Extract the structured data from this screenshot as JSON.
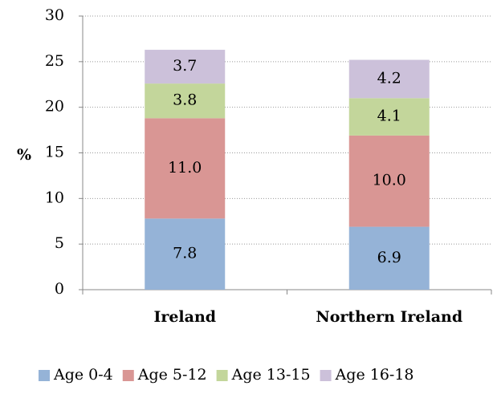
{
  "chart_data": {
    "type": "stacked_bar",
    "y_label": "%",
    "categories": [
      "Ireland",
      "Northern Ireland"
    ],
    "series": [
      {
        "name": "Age 0-4",
        "color": "#95b3d7",
        "values": [
          7.8,
          6.9
        ],
        "value_labels": [
          "7.8",
          "6.9"
        ]
      },
      {
        "name": "Age 5-12",
        "color": "#d99694",
        "values": [
          11.0,
          10.0
        ],
        "value_labels": [
          "11.0",
          "10.0"
        ]
      },
      {
        "name": "Age 13-15",
        "color": "#c3d69b",
        "values": [
          3.8,
          4.1
        ],
        "value_labels": [
          "3.8",
          "4.1"
        ]
      },
      {
        "name": "Age 16-18",
        "color": "#ccc1da",
        "values": [
          3.7,
          4.2
        ],
        "value_labels": [
          "3.7",
          "4.2"
        ]
      }
    ],
    "ylim": [
      0,
      30
    ],
    "yticks": [
      0,
      5,
      10,
      15,
      20,
      25,
      30
    ],
    "grid": true,
    "legend": "bottom"
  }
}
